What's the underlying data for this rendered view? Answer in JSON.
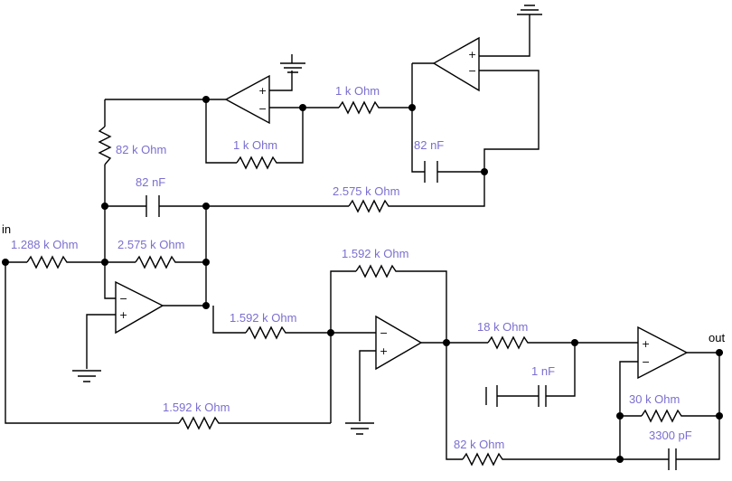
{
  "ports": {
    "input": "in",
    "output": "out"
  },
  "components": {
    "r_top_feedback": "82 k Ohm",
    "r_integrator1_fb": "1 k Ohm",
    "r_integrator2_in": "1 k Ohm",
    "c_integrator2": "82 nF",
    "c_main": "82 nF",
    "r_main_long": "2.575 k Ohm",
    "r_input": "1.288 k Ohm",
    "r_summing_fb": "2.575 k Ohm",
    "r_stage2_fb": "1.592 k Ohm",
    "r_stage2_in": "1.592 k Ohm",
    "r_bottom_feedforward": "1.592 k Ohm",
    "r_stage3_in": "18 k Ohm",
    "c_stage3_shunt": "1 nF",
    "r_stage3_fb": "30 k Ohm",
    "c_stage3_fb": "3300 pF",
    "r_bottom_out": "82 k Ohm"
  },
  "opamp_signs": {
    "plus": "+",
    "minus": "−"
  }
}
